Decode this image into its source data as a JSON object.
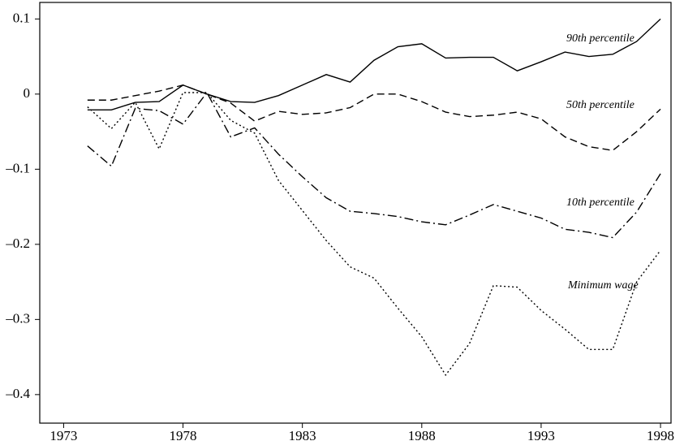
{
  "chart_data": {
    "type": "line",
    "x": [
      1974,
      1975,
      1976,
      1977,
      1978,
      1979,
      1980,
      1981,
      1982,
      1983,
      1984,
      1985,
      1986,
      1987,
      1988,
      1989,
      1990,
      1991,
      1992,
      1993,
      1994,
      1995,
      1996,
      1997,
      1998
    ],
    "series": [
      {
        "name": "90th percentile",
        "color": "#000000",
        "style": "solid",
        "values": [
          -0.021,
          -0.021,
          -0.011,
          -0.01,
          0.012,
          0.0,
          -0.01,
          -0.011,
          -0.002,
          0.012,
          0.026,
          0.016,
          0.045,
          0.063,
          0.067,
          0.048,
          0.049,
          0.049,
          0.031,
          0.043,
          0.056,
          0.05,
          0.053,
          0.07,
          0.1
        ]
      },
      {
        "name": "50th percentile",
        "color": "#000000",
        "style": "dashed",
        "values": [
          -0.008,
          -0.008,
          -0.002,
          0.004,
          0.012,
          0.0,
          -0.012,
          -0.036,
          -0.023,
          -0.027,
          -0.025,
          -0.018,
          0.0,
          0.0,
          -0.01,
          -0.024,
          -0.03,
          -0.028,
          -0.024,
          -0.033,
          -0.057,
          -0.07,
          -0.075,
          -0.05,
          -0.02
        ]
      },
      {
        "name": "10th percentile",
        "color": "#000000",
        "style": "dashdot",
        "values": [
          -0.069,
          -0.096,
          -0.019,
          -0.022,
          -0.04,
          0.002,
          -0.057,
          -0.045,
          -0.08,
          -0.11,
          -0.138,
          -0.156,
          -0.159,
          -0.163,
          -0.17,
          -0.174,
          -0.161,
          -0.147,
          -0.156,
          -0.165,
          -0.18,
          -0.184,
          -0.191,
          -0.157,
          -0.106
        ]
      },
      {
        "name": "Minimum wage",
        "color": "#000000",
        "style": "dotted",
        "values": [
          -0.017,
          -0.046,
          -0.011,
          -0.073,
          0.002,
          0.002,
          -0.035,
          -0.052,
          -0.115,
          -0.155,
          -0.195,
          -0.23,
          -0.245,
          -0.285,
          -0.323,
          -0.374,
          -0.332,
          -0.255,
          -0.257,
          -0.288,
          -0.313,
          -0.34,
          -0.34,
          -0.25,
          -0.208
        ]
      }
    ],
    "xlim": [
      1972.0,
      1998.44
    ],
    "xticks": [
      1973,
      1978,
      1983,
      1988,
      1993,
      1998
    ],
    "ylim": [
      -0.438,
      0.122
    ],
    "yticks": [
      0.1,
      0,
      {
        "value": -0.1,
        "label": "–0.1"
      },
      {
        "value": -0.2,
        "label": "–0.2"
      },
      {
        "value": -0.3,
        "label": "–0.3"
      },
      {
        "value": -0.4,
        "label": "–0.4"
      }
    ],
    "grid": false
  }
}
